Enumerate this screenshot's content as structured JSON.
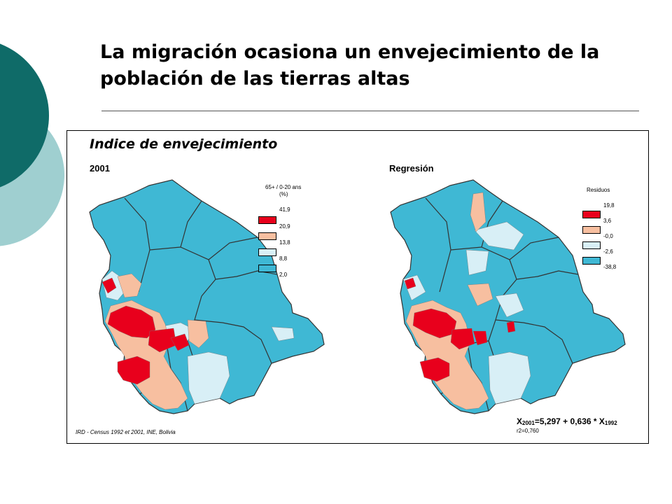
{
  "slide": {
    "title": "La migración ocasiona un envejecimiento de la población de las tierras altas",
    "accent_colors": [
      "#0f6b68",
      "#9fcfd0"
    ]
  },
  "figure": {
    "title": "Indice de envejecimiento",
    "source": "IRD - Census 1992 et 2001, INE, Bolivia",
    "left_map": {
      "label": "2001",
      "legend_title_line1": "65+ / 0-20 ans",
      "legend_title_line2": "(%)",
      "legend": [
        {
          "value": "41,9",
          "color": "#e8001c"
        },
        {
          "value": "20,9",
          "color": "#f7bfa0"
        },
        {
          "value": "13,8",
          "color": "#d8eff6"
        },
        {
          "value": "8,8",
          "color": "#3fb8d4"
        },
        {
          "value": "2,0",
          "color": ""
        }
      ]
    },
    "right_map": {
      "label": "Regresión",
      "legend_title_line1": "Residuos",
      "legend": [
        {
          "value": "19,8",
          "color": "#e8001c"
        },
        {
          "value": "3,6",
          "color": "#f7bfa0"
        },
        {
          "value": "-0,0",
          "color": "#d8eff6"
        },
        {
          "value": "-2,6",
          "color": "#3fb8d4"
        },
        {
          "value": "-38,8",
          "color": ""
        }
      ],
      "equation": {
        "x": "X",
        "sub1": "2001",
        "mid": "=5,297 + 0,636 * X",
        "sub2": "1992"
      },
      "r2": "r2=0,760"
    },
    "map_colors": {
      "base": "#3fb8d4",
      "light": "#d8eff6",
      "peach": "#f7bfa0",
      "red": "#e8001c",
      "border": "#333333"
    }
  }
}
